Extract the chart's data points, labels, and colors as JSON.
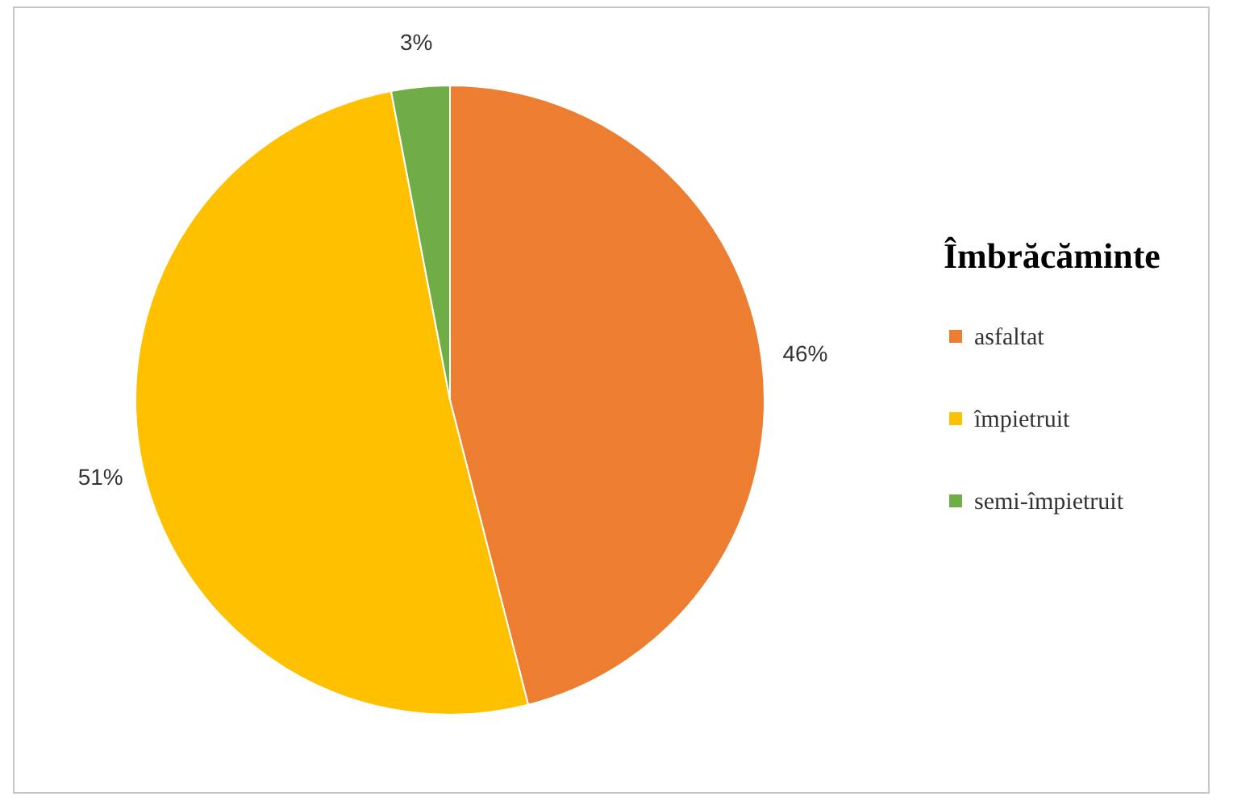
{
  "chart_data": {
    "type": "pie",
    "legend_title": "Îmbrăcăminte",
    "categories": [
      "asfaltat",
      "împietruit",
      "semi-împietruit"
    ],
    "values": [
      46,
      51,
      3
    ],
    "colors": [
      "#ed7d31",
      "#ffc000",
      "#70ad47"
    ],
    "value_labels": [
      "46%",
      "51%",
      "3%"
    ],
    "legend": "right"
  }
}
